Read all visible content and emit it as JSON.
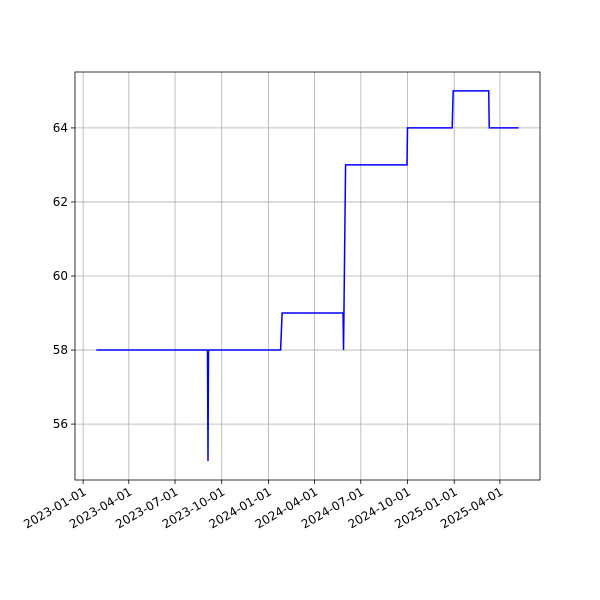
{
  "chart_data": {
    "type": "line",
    "x": [
      "2023-01-27",
      "2023-09-03",
      "2023-09-04",
      "2023-09-05",
      "2024-01-25",
      "2024-01-28",
      "2024-05-27",
      "2024-05-28",
      "2024-06-01",
      "2024-09-30",
      "2024-10-01",
      "2024-12-28",
      "2024-12-30",
      "2025-03-10",
      "2025-03-11",
      "2025-05-08"
    ],
    "values": [
      58,
      58,
      55,
      58,
      58,
      59,
      59,
      58,
      63,
      63,
      64,
      64,
      65,
      65,
      64,
      64
    ],
    "color": "#0000ff",
    "xlim": [
      "2022-12-16",
      "2025-06-19"
    ],
    "xticks": [
      "2023-01-01",
      "2023-04-01",
      "2023-07-01",
      "2023-10-01",
      "2024-01-01",
      "2024-04-01",
      "2024-07-01",
      "2024-10-01",
      "2025-01-01",
      "2025-04-01"
    ],
    "ylim": [
      54.49,
      65.51
    ],
    "yticks": [
      56,
      58,
      60,
      62,
      64
    ],
    "grid": true
  }
}
